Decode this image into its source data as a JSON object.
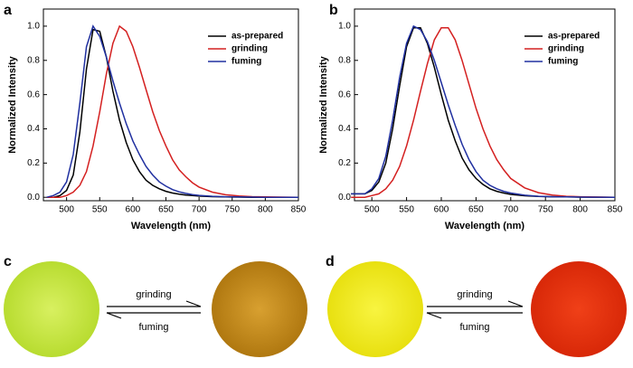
{
  "chart_data": [
    {
      "type": "line",
      "panel": "a",
      "xlabel": "Wavelength (nm)",
      "ylabel": "Normalized Intensity",
      "x": [
        470,
        480,
        490,
        500,
        510,
        520,
        530,
        540,
        550,
        560,
        570,
        580,
        590,
        600,
        610,
        620,
        630,
        640,
        650,
        660,
        670,
        680,
        690,
        700,
        720,
        740,
        760,
        780,
        800,
        850
      ],
      "series": [
        {
          "name": "as-prepared",
          "color": "#000000",
          "values": [
            0,
            0,
            0.01,
            0.04,
            0.13,
            0.38,
            0.75,
            0.98,
            0.97,
            0.82,
            0.62,
            0.45,
            0.32,
            0.22,
            0.15,
            0.1,
            0.07,
            0.05,
            0.035,
            0.025,
            0.018,
            0.013,
            0.01,
            0.007,
            0.004,
            0.002,
            0.001,
            0,
            0,
            0
          ]
        },
        {
          "name": "grinding",
          "color": "#d42020",
          "values": [
            0,
            0,
            0,
            0.01,
            0.03,
            0.07,
            0.15,
            0.3,
            0.5,
            0.72,
            0.9,
            1.0,
            0.97,
            0.88,
            0.76,
            0.63,
            0.5,
            0.39,
            0.3,
            0.22,
            0.16,
            0.12,
            0.085,
            0.06,
            0.03,
            0.015,
            0.008,
            0.004,
            0.002,
            0
          ]
        },
        {
          "name": "fuming",
          "color": "#2030a0",
          "values": [
            0,
            0.01,
            0.03,
            0.09,
            0.25,
            0.55,
            0.88,
            1.0,
            0.94,
            0.82,
            0.68,
            0.55,
            0.43,
            0.33,
            0.25,
            0.18,
            0.13,
            0.09,
            0.065,
            0.045,
            0.032,
            0.023,
            0.016,
            0.011,
            0.006,
            0.003,
            0.002,
            0.001,
            0,
            0
          ]
        }
      ],
      "xlim": [
        465,
        850
      ],
      "xticks": [
        500,
        550,
        600,
        650,
        700,
        750,
        800,
        850
      ],
      "ylim": [
        -0.02,
        1.1
      ],
      "yticks": [
        {
          "value": 0,
          "label": "0.0"
        },
        0.2,
        0.4,
        0.6,
        0.8,
        {
          "value": 1,
          "label": "1.0"
        }
      ]
    },
    {
      "type": "line",
      "panel": "b",
      "xlabel": "Wavelength (nm)",
      "ylabel": "Normalized Intensity",
      "x": [
        470,
        480,
        490,
        500,
        510,
        520,
        530,
        540,
        550,
        560,
        570,
        580,
        590,
        600,
        610,
        620,
        630,
        640,
        650,
        660,
        670,
        680,
        690,
        700,
        720,
        740,
        760,
        780,
        800,
        850
      ],
      "series": [
        {
          "name": "as-prepared",
          "color": "#000000",
          "values": [
            0.02,
            0.02,
            0.02,
            0.04,
            0.09,
            0.2,
            0.4,
            0.65,
            0.88,
            0.99,
            0.99,
            0.9,
            0.76,
            0.6,
            0.45,
            0.33,
            0.23,
            0.16,
            0.11,
            0.075,
            0.05,
            0.035,
            0.025,
            0.017,
            0.009,
            0.005,
            0.003,
            0.002,
            0.001,
            0
          ]
        },
        {
          "name": "grinding",
          "color": "#d42020",
          "values": [
            0,
            0,
            0,
            0.01,
            0.02,
            0.05,
            0.1,
            0.18,
            0.3,
            0.45,
            0.62,
            0.78,
            0.92,
            0.99,
            0.99,
            0.92,
            0.8,
            0.66,
            0.52,
            0.4,
            0.3,
            0.22,
            0.16,
            0.11,
            0.055,
            0.027,
            0.013,
            0.006,
            0.003,
            0
          ]
        },
        {
          "name": "fuming",
          "color": "#2030a0",
          "values": [
            0.02,
            0.02,
            0.02,
            0.05,
            0.11,
            0.24,
            0.45,
            0.7,
            0.9,
            1.0,
            0.98,
            0.91,
            0.8,
            0.67,
            0.54,
            0.42,
            0.31,
            0.22,
            0.15,
            0.1,
            0.07,
            0.05,
            0.035,
            0.025,
            0.012,
            0.006,
            0.003,
            0.002,
            0.001,
            0
          ]
        }
      ],
      "xlim": [
        475,
        850
      ],
      "xticks": [
        500,
        550,
        600,
        650,
        700,
        750,
        800,
        850
      ],
      "ylim": [
        -0.02,
        1.1
      ],
      "yticks": [
        {
          "value": 0,
          "label": "0.0"
        },
        0.2,
        0.4,
        0.6,
        0.8,
        {
          "value": 1,
          "label": "1.0"
        }
      ]
    }
  ],
  "photos": [
    {
      "panel": "c",
      "forward": "grinding",
      "reverse": "fuming"
    },
    {
      "panel": "d",
      "forward": "grinding",
      "reverse": "fuming"
    }
  ]
}
